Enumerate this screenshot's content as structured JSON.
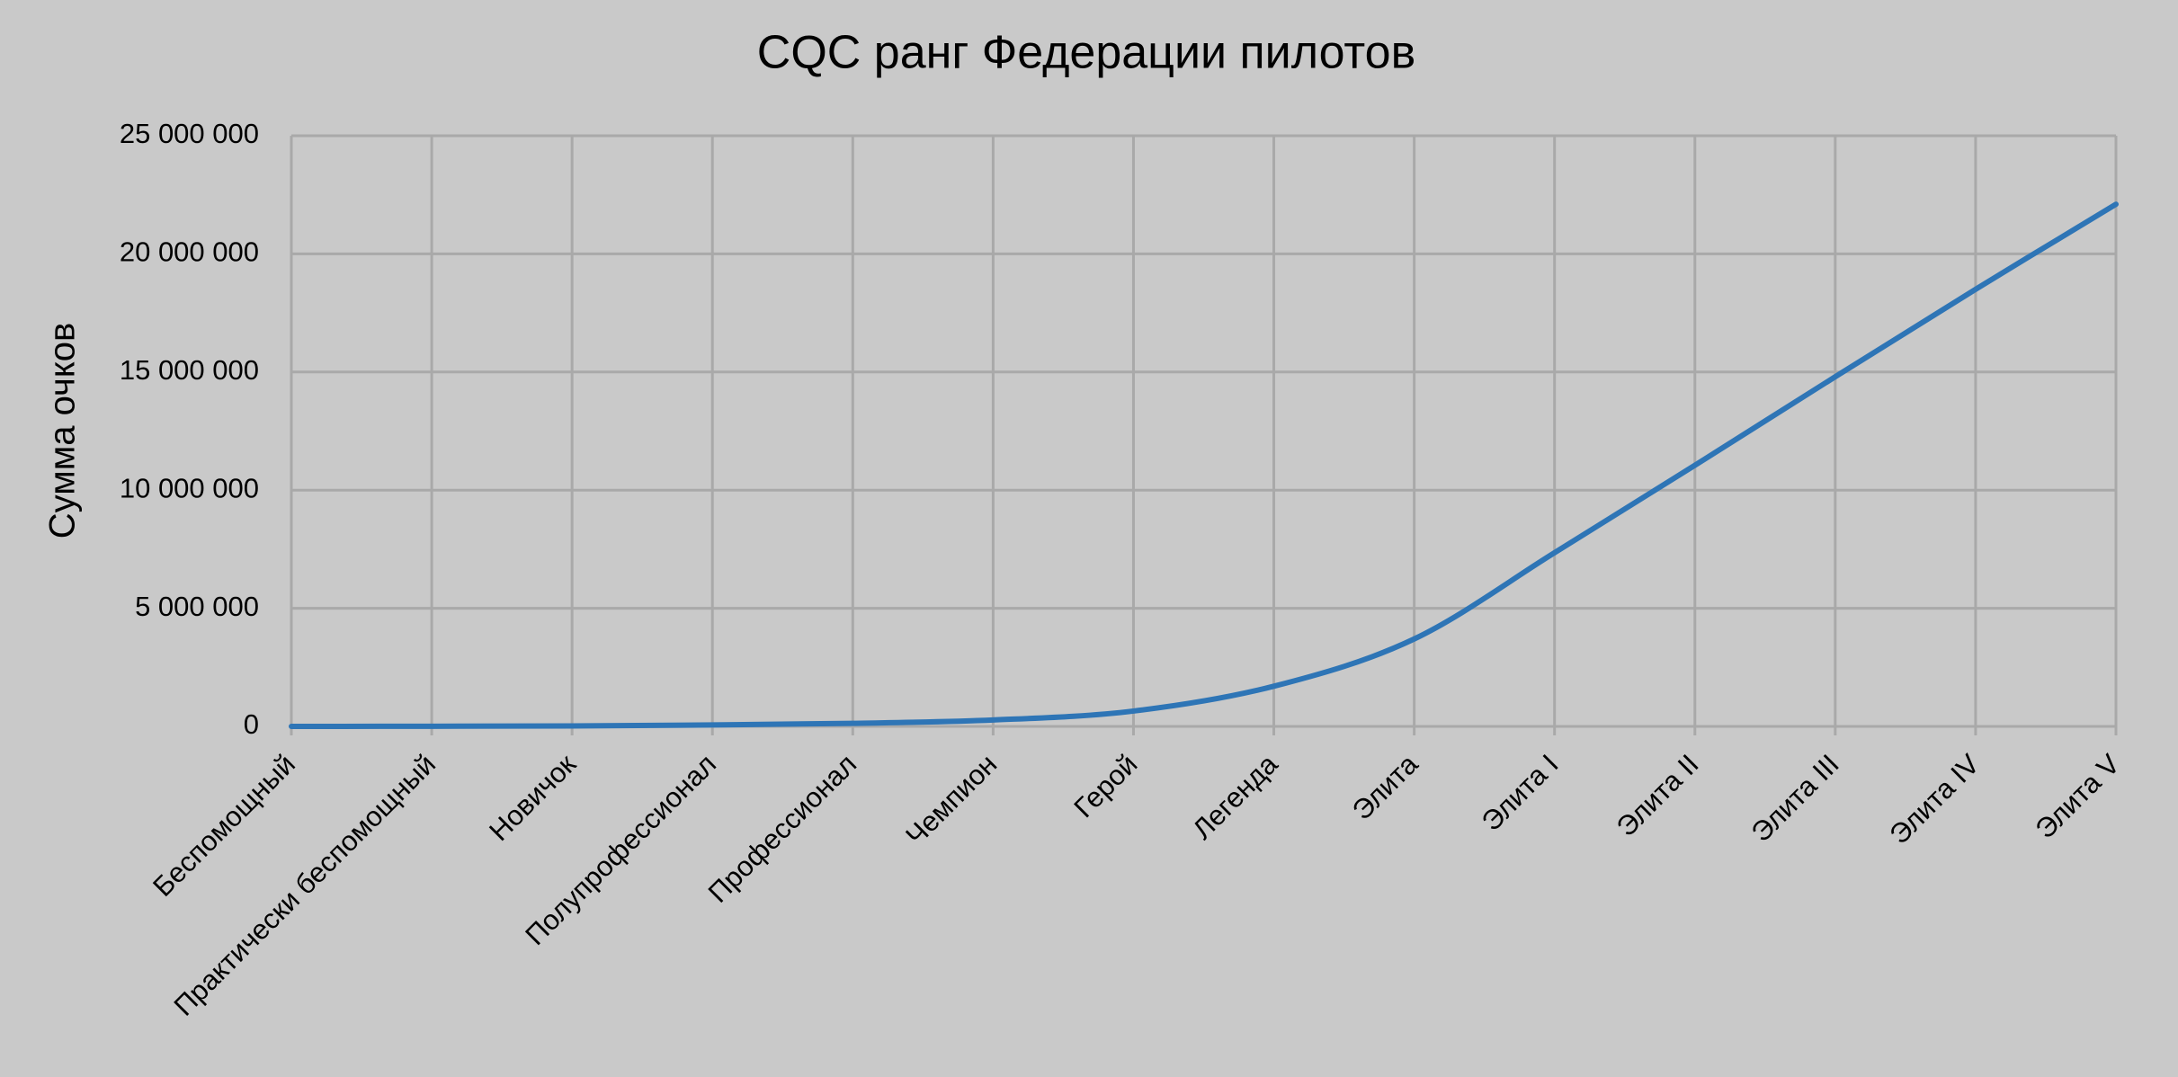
{
  "chart_data": {
    "type": "line",
    "title": "CQC ранг Федерации пилотов",
    "y_label": "Сумма очков",
    "categories": [
      "Беспомощный",
      "Практически беспомощный",
      "Новичок",
      "Полупрофессионал",
      "Профессионал",
      "Чемпион",
      "Герой",
      "Легенда",
      "Элита",
      "Элита I",
      "Элита II",
      "Элита III",
      "Элита IV",
      "Элита V"
    ],
    "series": [
      {
        "name": "Сумма очков",
        "color": "#2e75b6",
        "values": [
          0,
          5000,
          20000,
          60000,
          130000,
          270000,
          650000,
          1700000,
          3700000,
          7350000,
          11050000,
          14800000,
          18500000,
          22100000
        ]
      }
    ],
    "ylim": [
      0,
      25000000
    ],
    "yticks": [
      0,
      {
        "value": 5000000,
        "label": "5 000 000"
      },
      {
        "value": 10000000,
        "label": "10 000 000"
      },
      {
        "value": 15000000,
        "label": "15 000 000"
      },
      {
        "value": 20000000,
        "label": "20 000 000"
      },
      {
        "value": 25000000,
        "label": "25 000 000"
      }
    ],
    "grid": true
  }
}
